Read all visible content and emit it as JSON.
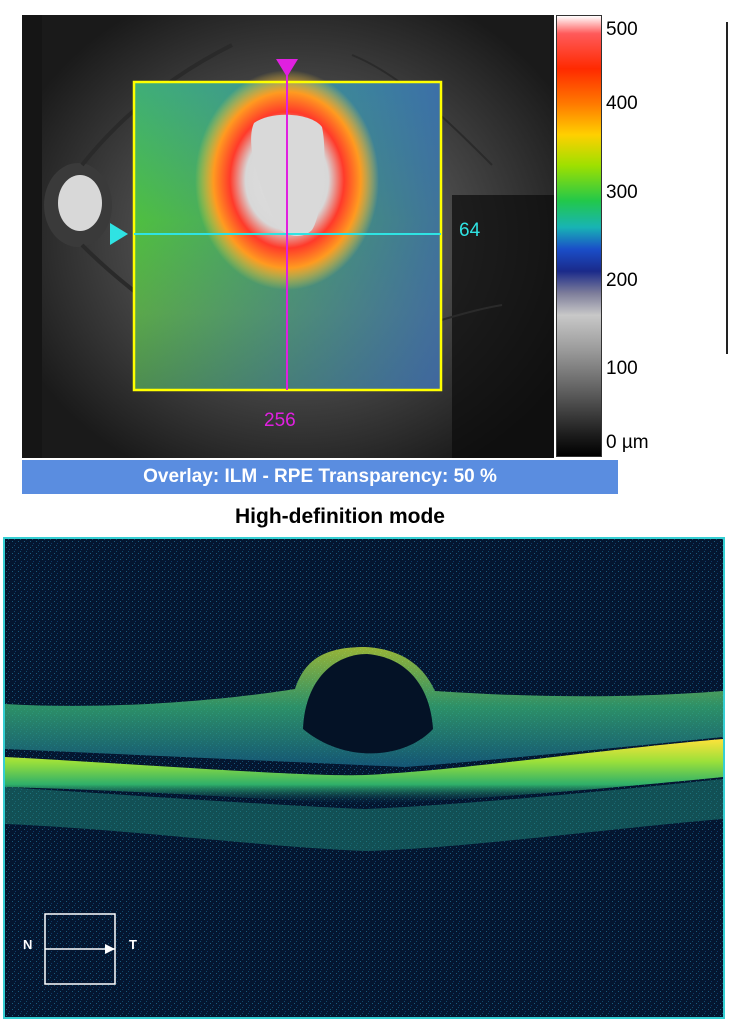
{
  "colorbar": {
    "ticks": [
      "500",
      "400",
      "300",
      "200",
      "100",
      "0 µm"
    ]
  },
  "fundus": {
    "horizontal_scan_label": "64",
    "vertical_scan_label": "256"
  },
  "overlay_bar": {
    "text": "Overlay: ILM - RPE  Transparency: 50 %"
  },
  "oct": {
    "title": "High-definition mode",
    "orientation": {
      "left": "N",
      "right": "T"
    }
  },
  "colors": {
    "overlay_bar_bg": "#5a8de0",
    "scan_box": "#ffff00",
    "horizontal_line": "#2fe3e3",
    "vertical_line": "#e020e0",
    "oct_frame": "#35cfd3"
  }
}
